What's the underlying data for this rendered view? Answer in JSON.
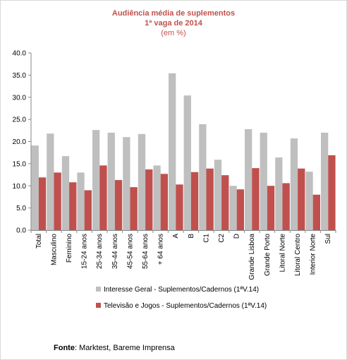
{
  "chart_data": {
    "type": "bar",
    "title": "Audiência média de suplementos",
    "subtitle": "1ª vaga de 2014",
    "unit_note": "(em %)",
    "categories": [
      "Total",
      "Masculino",
      "Feminino",
      "15-24 anos",
      "25-34 anos",
      "35-44 anos",
      "45-54 anos",
      "55-64 anos",
      "+ 64 anos",
      "A",
      "B",
      "C1",
      "C2",
      "D",
      "Grande Lisboa",
      "Grande Porto",
      "Litoral Norte",
      "Litoral Centro",
      "Interior Norte",
      "Sul"
    ],
    "series": [
      {
        "name": "Interesse Geral - Suplementos/Cadernos (1ªV.14)",
        "color": "#bfbfbf",
        "values": [
          19.1,
          21.8,
          16.7,
          13.0,
          22.6,
          22.0,
          21.0,
          21.7,
          14.6,
          35.4,
          30.4,
          23.9,
          15.9,
          10.0,
          22.8,
          22.0,
          16.4,
          20.7,
          13.2,
          22.0
        ]
      },
      {
        "name": "Televisão e Jogos - Suplementos/Cadernos (1ªV.14)",
        "color": "#c0504d",
        "values": [
          11.9,
          13.0,
          10.8,
          9.0,
          14.6,
          11.3,
          9.7,
          13.7,
          12.7,
          10.3,
          13.1,
          13.9,
          12.4,
          9.2,
          14.0,
          10.0,
          10.6,
          13.9,
          8.0,
          16.9
        ]
      }
    ],
    "ylim": [
      0,
      40
    ],
    "yticks": [
      "0.0",
      "5.0",
      "10.0",
      "15.0",
      "20.0",
      "25.0",
      "30.0",
      "35.0",
      "40.0"
    ],
    "grid": false,
    "legend_position": "bottom"
  },
  "source": {
    "label": "Fonte",
    "text": ": Marktest, Bareme Imprensa"
  }
}
